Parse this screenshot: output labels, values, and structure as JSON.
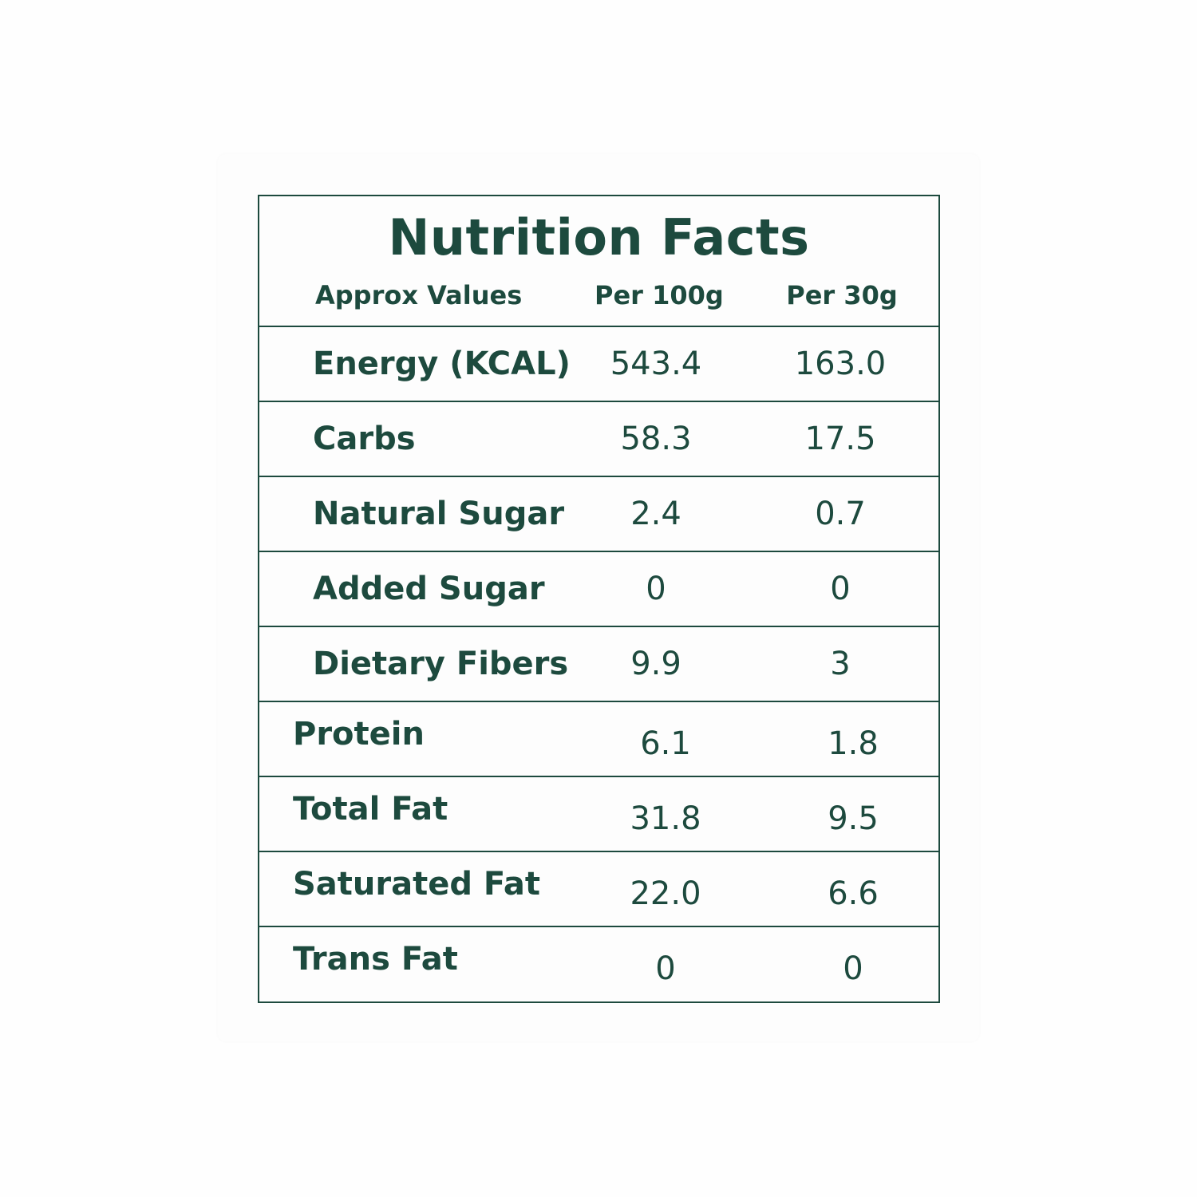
{
  "title": "Nutrition Facts",
  "columns": {
    "label": "Approx Values",
    "per100": "Per 100g",
    "per30": "Per 30g"
  },
  "rows": [
    {
      "label": "Energy (KCAL)",
      "per100": "543.4",
      "per30": "163.0"
    },
    {
      "label": "Carbs",
      "per100": "58.3",
      "per30": "17.5"
    },
    {
      "label": "Natural Sugar",
      "per100": "2.4",
      "per30": "0.7"
    },
    {
      "label": "Added Sugar",
      "per100": "0",
      "per30": "0"
    },
    {
      "label": "Dietary Fibers",
      "per100": "9.9",
      "per30": "3"
    },
    {
      "label": "Protein",
      "per100": "6.1",
      "per30": "1.8"
    },
    {
      "label": "Total Fat",
      "per100": "31.8",
      "per30": "9.5"
    },
    {
      "label": "Saturated Fat",
      "per100": "22.0",
      "per30": "6.6"
    },
    {
      "label": "Trans Fat",
      "per100": "0",
      "per30": "0"
    }
  ]
}
